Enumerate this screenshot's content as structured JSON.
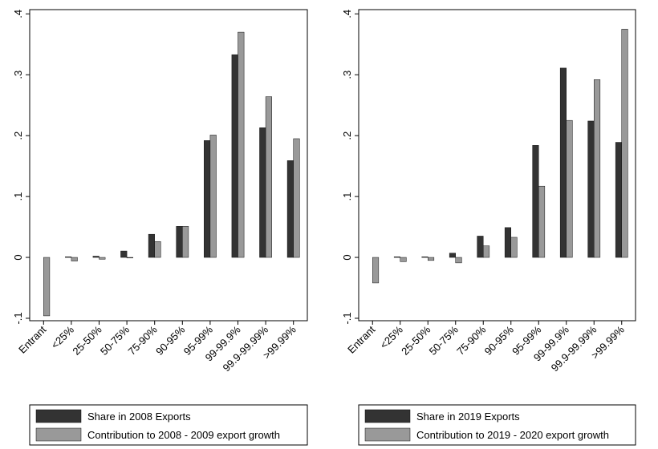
{
  "chart_data": [
    {
      "type": "bar",
      "categories": [
        "Entrant",
        "<25%",
        "25-50%",
        "50-75%",
        "75-90%",
        "90-95%",
        "95-99%",
        "99-99.9%",
        "99.9-99.99%",
        ">99.99%"
      ],
      "series": [
        {
          "name": "Share in 2008 Exports",
          "color": "#333333",
          "values": [
            0,
            0.001,
            0.002,
            0.0105,
            0.038,
            0.051,
            0.192,
            0.333,
            0.213,
            0.159
          ]
        },
        {
          "name": "Contribution to 2008 - 2009 export growth",
          "color": "#999999",
          "values": [
            -0.096,
            -0.006,
            -0.003,
            -0.001,
            0.026,
            0.051,
            0.201,
            0.37,
            0.264,
            0.195
          ]
        }
      ],
      "ylim": [
        -0.104,
        0.407
      ],
      "yticks": [
        {
          "value": -0.1,
          "label": "-.1"
        },
        0,
        {
          "value": 0.1,
          "label": ".1"
        },
        {
          "value": 0.2,
          "label": ".2"
        },
        {
          "value": 0.3,
          "label": ".3"
        },
        {
          "value": 0.4,
          "label": ".4"
        }
      ],
      "grid": false,
      "legend": "bottom"
    },
    {
      "type": "bar",
      "categories": [
        "Entrant",
        "<25%",
        "25-50%",
        "50-75%",
        "75-90%",
        "90-95%",
        "95-99%",
        "99-99.9%",
        "99.9-99.99%",
        ">99.99%"
      ],
      "series": [
        {
          "name": "Share in 2019 Exports",
          "color": "#333333",
          "values": [
            0,
            0.001,
            0.001,
            0.007,
            0.035,
            0.049,
            0.184,
            0.311,
            0.224,
            0.189
          ]
        },
        {
          "name": "Contribution to 2019 - 2020 export growth",
          "color": "#999999",
          "values": [
            -0.042,
            -0.007,
            -0.005,
            -0.009,
            0.019,
            0.033,
            0.117,
            0.225,
            0.292,
            0.375
          ]
        }
      ],
      "ylim": [
        -0.104,
        0.407
      ],
      "yticks": [
        {
          "value": -0.1,
          "label": "-.1"
        },
        0,
        {
          "value": 0.1,
          "label": ".1"
        },
        {
          "value": 0.2,
          "label": ".2"
        },
        {
          "value": 0.3,
          "label": ".3"
        },
        {
          "value": 0.4,
          "label": ".4"
        }
      ],
      "grid": false,
      "legend": "bottom"
    }
  ]
}
